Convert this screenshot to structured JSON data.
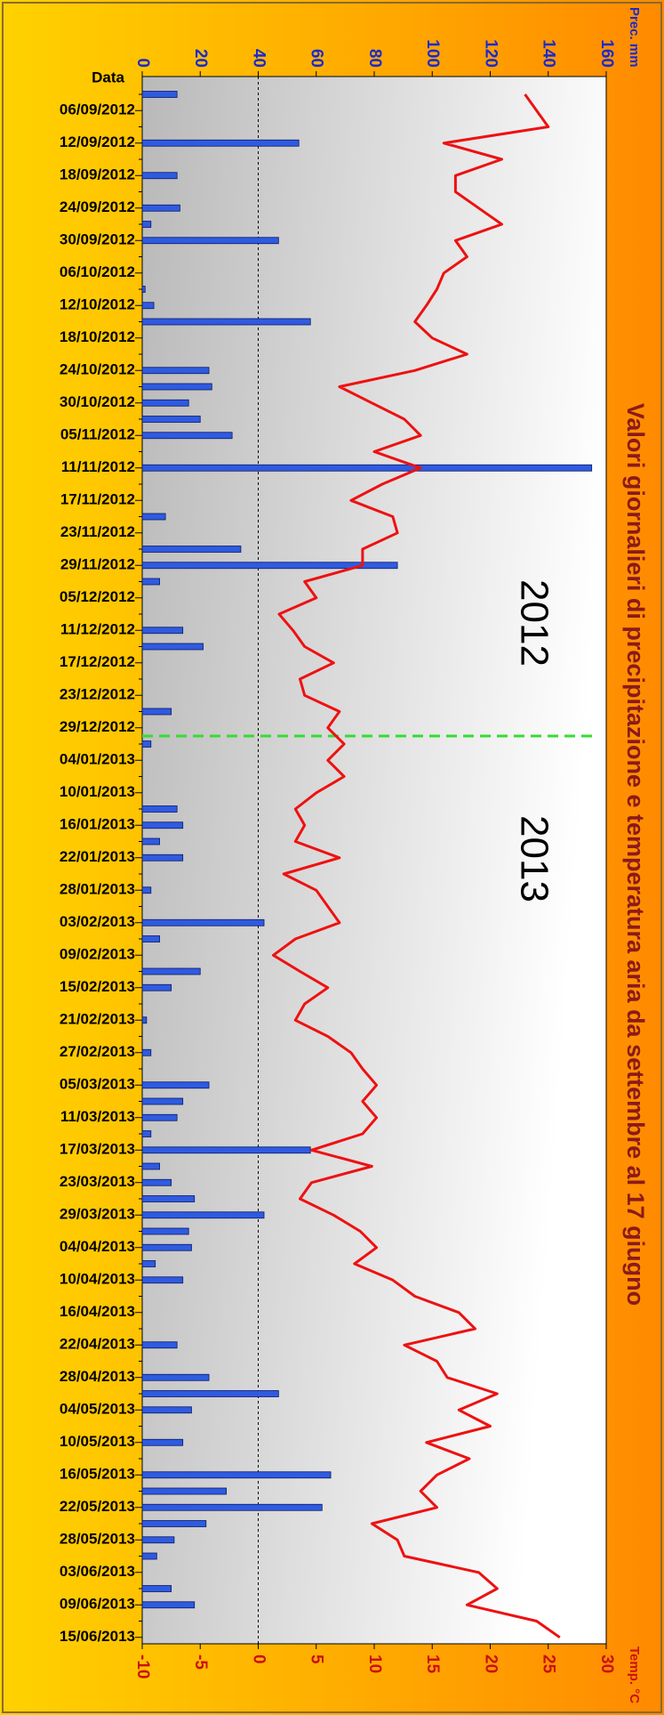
{
  "chart_data": {
    "type": "combo",
    "orientation": "horizontal",
    "title": "Valori giornalieri di precipitazione e temperatura aria da  settembre al 17 giugno",
    "annotations": [
      "2012",
      "2013"
    ],
    "category_label": "Data",
    "categories": [
      null,
      "06/09/2012",
      null,
      "12/09/2012",
      null,
      "18/09/2012",
      null,
      "24/09/2012",
      null,
      "30/09/2012",
      null,
      "06/10/2012",
      null,
      "12/10/2012",
      null,
      "18/10/2012",
      null,
      "24/10/2012",
      null,
      "30/10/2012",
      null,
      "05/11/2012",
      null,
      "11/11/2012",
      null,
      "17/11/2012",
      null,
      "23/11/2012",
      null,
      "29/11/2012",
      null,
      "05/12/2012",
      null,
      "11/12/2012",
      null,
      "17/12/2012",
      null,
      "23/12/2012",
      null,
      "29/12/2012",
      null,
      "04/01/2013",
      null,
      "10/01/2013",
      null,
      "16/01/2013",
      null,
      "22/01/2013",
      null,
      "28/01/2013",
      null,
      "03/02/2013",
      null,
      "09/02/2013",
      null,
      "15/02/2013",
      null,
      "21/02/2013",
      null,
      "27/02/2013",
      null,
      "05/03/2013",
      null,
      "11/03/2013",
      null,
      "17/03/2013",
      null,
      "23/03/2013",
      null,
      "29/03/2013",
      null,
      "04/04/2013",
      null,
      "10/04/2013",
      null,
      "16/04/2013",
      null,
      "22/04/2013",
      null,
      "28/04/2013",
      null,
      "04/05/2013",
      null,
      "10/05/2013",
      null,
      "16/05/2013",
      null,
      "22/05/2013",
      null,
      "28/05/2013",
      null,
      "03/06/2013",
      null,
      "09/06/2013",
      null,
      "15/06/2013"
    ],
    "series": [
      {
        "type": "bar",
        "axis": "x",
        "color": "#2f5be0",
        "values": [
          12,
          0,
          0,
          54,
          0,
          12,
          0,
          13,
          3,
          47,
          0,
          0,
          1,
          4,
          58,
          0,
          0,
          23,
          24,
          16,
          20,
          31,
          0,
          155,
          0,
          0,
          8,
          0,
          34,
          88,
          6,
          0,
          0,
          14,
          21,
          0,
          0,
          0,
          10,
          0,
          3,
          0,
          0,
          0,
          12,
          14,
          6,
          14,
          0,
          3,
          0,
          42,
          6,
          0,
          20,
          10,
          0,
          1.5,
          0,
          3,
          0,
          23,
          14,
          12,
          3,
          58,
          6,
          10,
          18,
          42,
          16,
          17,
          4.5,
          14,
          0,
          0,
          0,
          12,
          0,
          23,
          47,
          17,
          0,
          14,
          0,
          65,
          29,
          62,
          22,
          11,
          5,
          0,
          10,
          18,
          0,
          0
        ]
      },
      {
        "type": "line",
        "axis": "x2",
        "color": "#ee1111",
        "values": [
          23,
          24,
          25,
          16,
          21,
          17,
          17,
          19,
          21,
          17,
          18,
          16,
          15.4,
          14.5,
          13.5,
          15,
          18,
          13.5,
          7,
          9.8,
          12.6,
          14,
          10,
          14,
          10.7,
          8,
          11.6,
          12,
          9,
          9,
          4,
          5,
          1.8,
          3,
          4,
          6.5,
          3.6,
          4,
          7,
          6,
          7.4,
          6,
          7.4,
          5,
          3.2,
          4,
          3.2,
          7,
          2.2,
          5,
          6,
          7,
          3.2,
          1.3,
          3.6,
          6,
          4,
          3.2,
          6,
          8,
          9,
          10.2,
          9,
          10.2,
          9,
          4.6,
          9.8,
          4.6,
          3.6,
          6.5,
          8.8,
          10.2,
          8.3,
          11.6,
          13.5,
          17.3,
          18.7,
          12.6,
          15.4,
          16.3,
          20.6,
          17.3,
          20,
          14.5,
          18.2,
          15.4,
          14,
          15.4,
          9.8,
          12,
          12.6,
          19,
          20.6,
          18,
          24,
          26
        ]
      }
    ],
    "x_label": "Prec. mm",
    "xlim": [
      0,
      160
    ],
    "xticks": [
      0,
      20,
      40,
      60,
      80,
      100,
      120,
      140,
      160
    ],
    "x2_label": "Temp. °C",
    "x2lim": [
      -10,
      30
    ],
    "x2ticks": [
      -10,
      -5,
      0,
      5,
      10,
      15,
      20,
      25,
      30
    ]
  }
}
